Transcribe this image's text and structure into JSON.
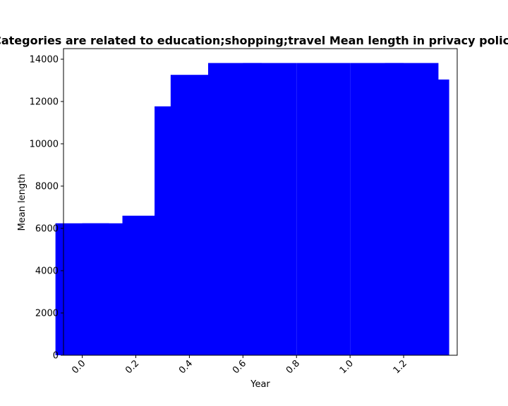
{
  "chart_data": {
    "type": "bar",
    "title": "Categories are related to education;shopping;travel Mean length in privacy policies",
    "xlabel": "Year",
    "ylabel": "Mean length",
    "xlim": [
      -0.07,
      1.4
    ],
    "ylim": [
      0,
      14500
    ],
    "x_ticks": [
      {
        "value": 0.0,
        "label": "0.0"
      },
      {
        "value": 0.2,
        "label": "0.2"
      },
      {
        "value": 0.4,
        "label": "0.4"
      },
      {
        "value": 0.6,
        "label": "0.6"
      },
      {
        "value": 0.8,
        "label": "0.8"
      },
      {
        "value": 1.0,
        "label": "1.0"
      },
      {
        "value": 1.2,
        "label": "1.2"
      }
    ],
    "y_ticks": [
      {
        "value": 0,
        "label": "0"
      },
      {
        "value": 2000,
        "label": "2000"
      },
      {
        "value": 4000,
        "label": "4000"
      },
      {
        "value": 6000,
        "label": "6000"
      },
      {
        "value": 8000,
        "label": "8000"
      },
      {
        "value": 10000,
        "label": "10000"
      },
      {
        "value": 12000,
        "label": "12000"
      },
      {
        "value": 14000,
        "label": "14000"
      }
    ],
    "bar_width": 0.2,
    "bars": [
      {
        "x": 0.0,
        "value": 6240
      },
      {
        "x": 0.1,
        "value": 6240
      },
      {
        "x": 0.25,
        "value": 6600
      },
      {
        "x": 0.37,
        "value": 11770
      },
      {
        "x": 0.43,
        "value": 13260
      },
      {
        "x": 0.57,
        "value": 13820
      },
      {
        "x": 0.7,
        "value": 13820
      },
      {
        "x": 0.9,
        "value": 13820
      },
      {
        "x": 1.1,
        "value": 13820
      },
      {
        "x": 1.23,
        "value": 13820
      },
      {
        "x": 1.27,
        "value": 13040
      }
    ],
    "bar_color": "#0000ff",
    "x_tick_rotation": 45,
    "grid": false,
    "legend": "none"
  }
}
